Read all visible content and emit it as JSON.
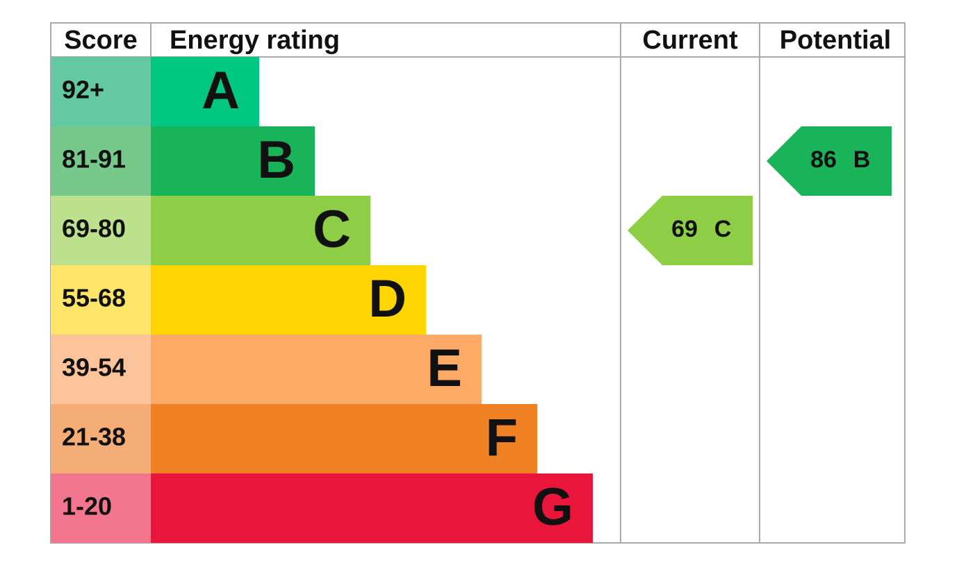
{
  "header": {
    "score": "Score",
    "energy_rating": "Energy rating",
    "current": "Current",
    "potential": "Potential"
  },
  "bands": [
    {
      "score": "92+",
      "rating": "A",
      "color": "#00c781",
      "score_color": "#64c8a4"
    },
    {
      "score": "81-91",
      "rating": "B",
      "color": "#19b459",
      "score_color": "#76c98a"
    },
    {
      "score": "69-80",
      "rating": "C",
      "color": "#8dce46",
      "score_color": "#bde08c"
    },
    {
      "score": "55-68",
      "rating": "D",
      "color": "#ffd500",
      "score_color": "#fde56a"
    },
    {
      "score": "39-54",
      "rating": "E",
      "color": "#fcaa65",
      "score_color": "#fdc49c"
    },
    {
      "score": "21-38",
      "rating": "F",
      "color": "#ef8023",
      "score_color": "#f4ad77"
    },
    {
      "score": "1-20",
      "rating": "G",
      "color": "#e9153b",
      "score_color": "#f2768d"
    }
  ],
  "current": {
    "score": 69,
    "rating": "C"
  },
  "potential": {
    "score": 86,
    "rating": "B"
  }
}
